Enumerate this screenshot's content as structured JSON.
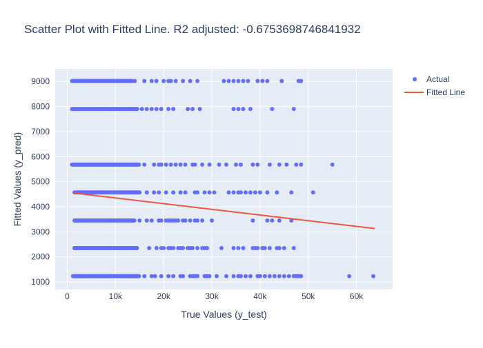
{
  "chart_data": {
    "type": "scatter",
    "title": "Scatter Plot with Fitted Line. R2 adjusted: -0.6753698746841932",
    "xlabel": "True Values (y_test)",
    "ylabel": "Fitted Values (y_pred)",
    "xlim": [
      -2500,
      67500
    ],
    "ylim": [
      700,
      9500
    ],
    "x_ticks": [
      0,
      10000,
      20000,
      30000,
      40000,
      50000,
      60000
    ],
    "x_tick_labels": [
      "0",
      "10k",
      "20k",
      "30k",
      "40k",
      "50k",
      "60k"
    ],
    "y_ticks": [
      1000,
      2000,
      3000,
      4000,
      5000,
      6000,
      7000,
      8000,
      9000
    ],
    "y_tick_labels": [
      "1000",
      "2000",
      "3000",
      "4000",
      "5000",
      "6000",
      "7000",
      "8000",
      "9000"
    ],
    "grid": true,
    "legend_position": "top-right",
    "colors": {
      "actual": "#636efa",
      "fitted": "#ef553b",
      "plot_bg": "#e5ecf6",
      "text": "#2a3f5f"
    },
    "series": [
      {
        "name": "Actual",
        "mode": "markers",
        "levels": [
          {
            "y": 1230,
            "dense_range": [
              1200,
              15000
            ],
            "x": [
              16000,
              17500,
              18200,
              19500,
              21000,
              22000,
              23500,
              24000,
              25500,
              26000,
              26500,
              27000,
              28500,
              29000,
              29500,
              31000,
              33000,
              34500,
              35500,
              36000,
              37000,
              38000,
              39500,
              40000,
              41000,
              42000,
              43000,
              44000,
              45000,
              46000,
              47000,
              47500,
              48000,
              48500,
              58500,
              63500
            ]
          },
          {
            "y": 2350,
            "dense_range": [
              1500,
              14500
            ],
            "x": [
              17000,
              18500,
              19500,
              20000,
              21000,
              21500,
              22000,
              23000,
              23500,
              24000,
              25000,
              25500,
              26000,
              27000,
              28000,
              28500,
              29000,
              32000,
              34500,
              35500,
              36500,
              38500,
              39000,
              39500,
              40500,
              41000,
              42000,
              43500,
              44000,
              45000,
              47000
            ]
          },
          {
            "y": 3450,
            "dense_range": [
              1500,
              14000
            ],
            "x": [
              15000,
              16500,
              17500,
              19000,
              19500,
              20500,
              21000,
              21500,
              22000,
              22500,
              23000,
              24000,
              24500,
              25500,
              26500,
              27000,
              28000,
              30000,
              38500,
              41500,
              42500,
              44000,
              46500
            ]
          },
          {
            "y": 4570,
            "dense_range": [
              1500,
              15000
            ],
            "x": [
              16500,
              18000,
              19000,
              20500,
              22000,
              23500,
              24500,
              26500,
              27000,
              28500,
              29500,
              30500,
              33500,
              34500,
              35500,
              36000,
              37000,
              38000,
              39000,
              40000,
              41500,
              43500,
              46500,
              51000
            ]
          },
          {
            "y": 5680,
            "dense_range": [
              1000,
              15000
            ],
            "x": [
              16000,
              18000,
              19000,
              19500,
              20500,
              21500,
              22500,
              23500,
              24500,
              26000,
              26500,
              28000,
              29500,
              31500,
              33000,
              35000,
              36000,
              38500,
              39500,
              42000,
              44000,
              45500,
              47500,
              48500,
              55000
            ]
          },
          {
            "y": 7900,
            "dense_range": [
              1000,
              14500
            ],
            "x": [
              15500,
              16500,
              17500,
              18500,
              19500,
              21000,
              22000,
              25000,
              26000,
              27500,
              34500,
              35500,
              36500,
              38000,
              42500,
              47000
            ]
          },
          {
            "y": 9020,
            "dense_range": [
              1000,
              13500
            ],
            "x": [
              14000,
              16000,
              17500,
              18500,
              20000,
              21000,
              21500,
              22500,
              24000,
              25500,
              27000,
              32500,
              33500,
              34500,
              35500,
              36500,
              37500,
              39500,
              40500,
              41500,
              44500,
              48000,
              48500
            ]
          }
        ]
      },
      {
        "name": "Fitted Line",
        "mode": "line",
        "x": [
          1200,
          63800
        ],
        "y": [
          4550,
          3130
        ]
      }
    ]
  }
}
